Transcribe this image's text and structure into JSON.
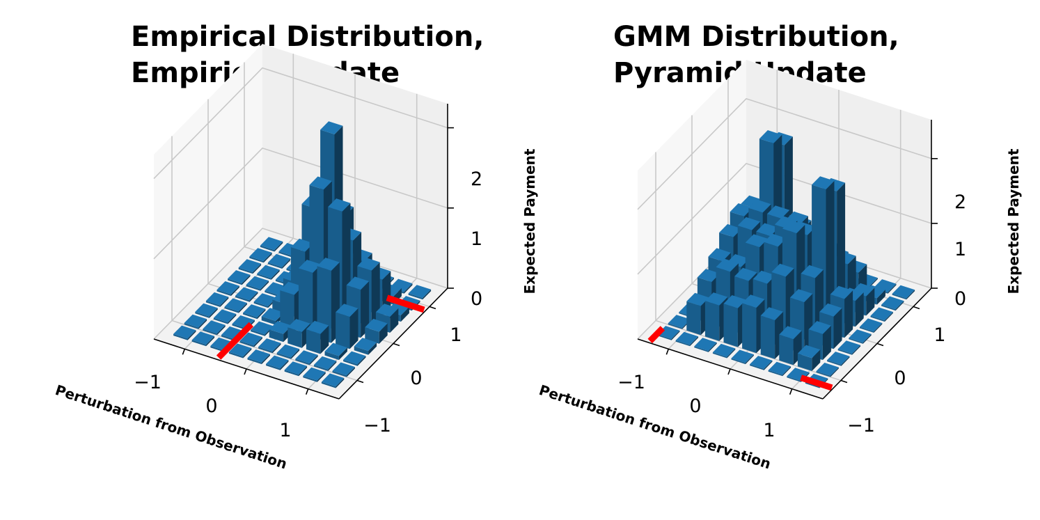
{
  "chart_data": [
    {
      "type": "bar3d",
      "title_lines": [
        "Empirical Distribution,",
        "Empirical Update"
      ],
      "xlabel": "Perturbation from Observation",
      "ylabel": "",
      "zlabel": "Expected Payment",
      "x_ticks": [
        "−1",
        "0",
        "1"
      ],
      "y_ticks": [
        "−1",
        "0",
        "1"
      ],
      "z_ticks": [
        "0",
        "1",
        "2"
      ],
      "xlim": [
        -1.5,
        1.5
      ],
      "ylim": [
        -1.5,
        1.5
      ],
      "zlim": [
        0,
        2.3
      ],
      "grid": true,
      "color": "#1f77b4",
      "highlight_color": "#ff0000",
      "bar_width": 0.23,
      "bar_grid": {
        "x": [
          -1.3,
          -1.0,
          -0.7,
          -0.4,
          -0.1,
          0.2,
          0.5,
          0.8,
          1.1
        ],
        "y": [
          -1.3,
          -1.0,
          -0.7,
          -0.4,
          -0.1,
          0.2,
          0.5,
          0.8,
          1.1
        ],
        "heights": [
          [
            0.02,
            0.02,
            0.02,
            0.02,
            0.02,
            0.02,
            0.02,
            0.02,
            0.02
          ],
          [
            0.02,
            0.02,
            0.02,
            0.02,
            0.02,
            0.02,
            0.02,
            0.02,
            0.02
          ],
          [
            0.02,
            0.02,
            0.02,
            0.02,
            0.02,
            0.02,
            0.02,
            0.02,
            0.02
          ],
          [
            0.02,
            0.02,
            0.02,
            0.05,
            0.12,
            0.25,
            0.35,
            0.15,
            0.02
          ],
          [
            0.02,
            0.02,
            0.1,
            0.45,
            0.85,
            1.25,
            0.55,
            0.3,
            0.02
          ],
          [
            0.02,
            0.02,
            0.2,
            0.8,
            1.7,
            2.25,
            1.1,
            0.4,
            0.02
          ],
          [
            0.02,
            0.02,
            0.25,
            0.9,
            1.5,
            1.0,
            0.6,
            0.25,
            0.02
          ],
          [
            0.02,
            0.02,
            0.05,
            0.4,
            0.6,
            0.7,
            0.45,
            0.1,
            0.02
          ],
          [
            0.02,
            0.02,
            0.02,
            0.05,
            0.15,
            0.2,
            0.08,
            0.02,
            0.02
          ]
        ]
      },
      "red_lines": [
        {
          "x": [
            -0.45,
            -0.45
          ],
          "y": [
            -1.5,
            -0.6
          ]
        },
        {
          "x": [
            0.9,
            1.5
          ],
          "y": [
            0.85,
            0.85
          ]
        }
      ]
    },
    {
      "type": "bar3d",
      "title_lines": [
        "GMM Distribution,",
        "Pyramid Update"
      ],
      "xlabel": "Perturbation from Observation",
      "ylabel": "",
      "zlabel": "Expected Payment",
      "x_ticks": [
        "−1",
        "0",
        "1"
      ],
      "y_ticks": [
        "−1",
        "0",
        "1"
      ],
      "z_ticks": [
        "0",
        "1",
        "2"
      ],
      "xlim": [
        -1.5,
        1.5
      ],
      "ylim": [
        -1.5,
        1.5
      ],
      "zlim": [
        0,
        2.6
      ],
      "grid": true,
      "color": "#1f77b4",
      "highlight_color": "#ff0000",
      "bar_width": 0.23,
      "bar_grid": {
        "x": [
          -1.3,
          -1.0,
          -0.7,
          -0.4,
          -0.1,
          0.2,
          0.5,
          0.8,
          1.1
        ],
        "y": [
          -1.3,
          -1.0,
          -0.7,
          -0.4,
          -0.1,
          0.2,
          0.5,
          0.8,
          1.1
        ],
        "heights": [
          [
            0.02,
            0.02,
            0.02,
            0.02,
            0.02,
            0.02,
            0.02,
            0.02,
            0.02
          ],
          [
            0.02,
            0.45,
            0.65,
            0.8,
            1.0,
            1.15,
            1.1,
            0.75,
            0.02
          ],
          [
            0.02,
            0.55,
            0.9,
            0.8,
            1.2,
            1.3,
            2.2,
            2.0,
            0.02
          ],
          [
            0.02,
            0.6,
            0.85,
            1.2,
            1.2,
            1.3,
            1.0,
            0.8,
            0.02
          ],
          [
            0.02,
            0.7,
            0.9,
            1.3,
            1.4,
            1.3,
            0.9,
            0.6,
            0.02
          ],
          [
            0.02,
            0.6,
            1.1,
            1.6,
            1.4,
            1.2,
            0.8,
            0.5,
            0.02
          ],
          [
            0.02,
            0.4,
            0.8,
            1.0,
            2.2,
            2.0,
            0.7,
            0.4,
            0.02
          ],
          [
            0.02,
            0.2,
            0.4,
            0.5,
            0.6,
            0.4,
            0.3,
            0.1,
            0.02
          ],
          [
            0.02,
            0.02,
            0.02,
            0.02,
            0.02,
            0.02,
            0.02,
            0.02,
            0.02
          ]
        ]
      },
      "red_lines": [
        {
          "x": [
            -1.3,
            -1.3
          ],
          "y": [
            -1.5,
            -1.15
          ]
        },
        {
          "x": [
            1.0,
            1.5
          ],
          "y": [
            -1.25,
            -1.25
          ]
        }
      ]
    }
  ]
}
